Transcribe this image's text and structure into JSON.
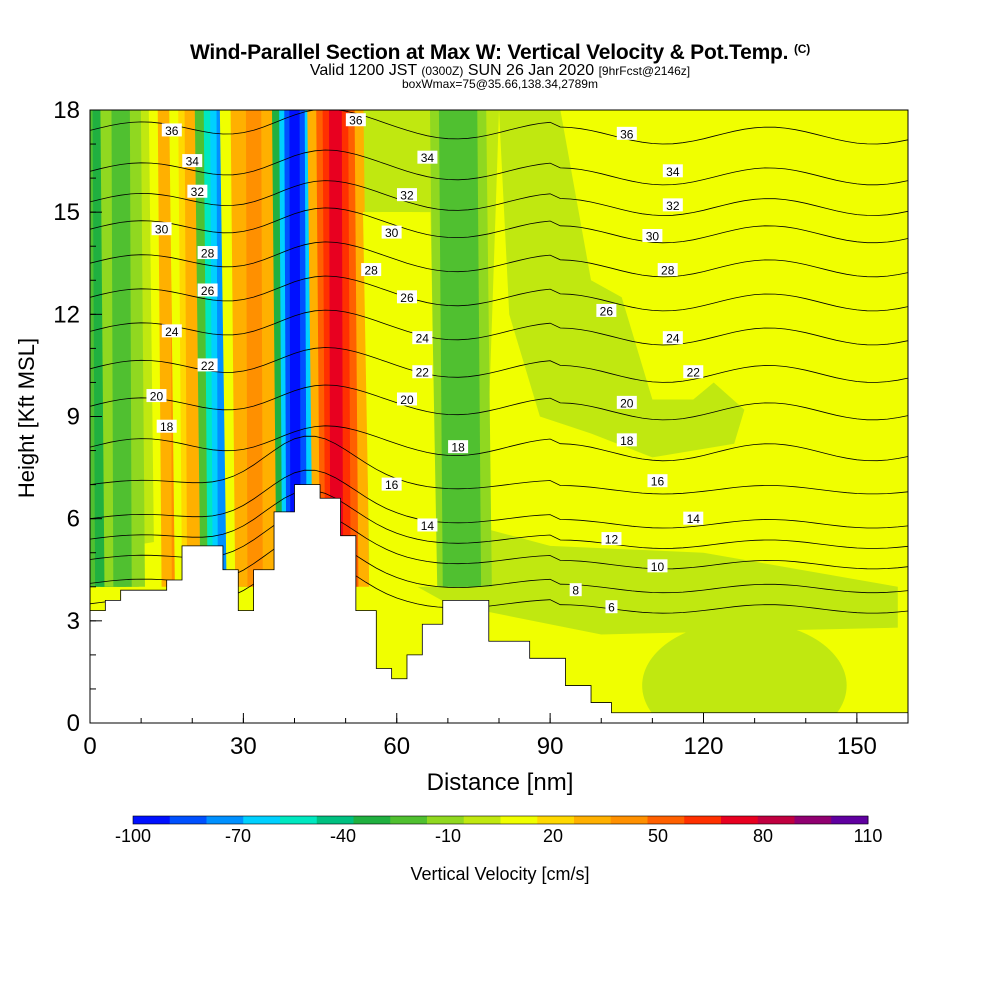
{
  "chart_data": {
    "type": "heatmap",
    "title": "Wind-Parallel Section at Max W: Vertical Velocity & Pot.Temp.",
    "title_mark": "(C)",
    "subtitle_main": "Valid 1200 JST",
    "subtitle_utc": "(0300Z)",
    "subtitle_date": "SUN 26 Jan 2020",
    "subtitle_fcst": "[9hrFcst@2146z]",
    "boxline": "boxWmax=75@35.66,138.34,2789m",
    "xlabel": "Distance [nm]",
    "ylabel": "Height [Kft MSL]",
    "xlim": [
      0,
      160
    ],
    "ylim": [
      0,
      18
    ],
    "x_ticks": [
      "0",
      "30",
      "60",
      "90",
      "120",
      "150"
    ],
    "y_ticks": [
      "0",
      "3",
      "6",
      "9",
      "12",
      "15",
      "18"
    ],
    "colorbar": {
      "label": "Vertical Velocity [cm/s]",
      "tick_labels": [
        "-100",
        "-70",
        "-40",
        "-10",
        "20",
        "50",
        "80",
        "110"
      ],
      "colors": [
        "#0010ff",
        "#0050ff",
        "#0090ff",
        "#00d0ff",
        "#00e8c0",
        "#00c080",
        "#20b040",
        "#50c030",
        "#90d820",
        "#c0e810",
        "#f0ff00",
        "#ffd800",
        "#ffb000",
        "#ff9000",
        "#ff6000",
        "#ff3000",
        "#e80020",
        "#c00040",
        "#900070",
        "#6000a0"
      ]
    },
    "terrain_kft": [
      [
        0,
        3.3
      ],
      [
        3,
        3.6
      ],
      [
        6,
        3.9
      ],
      [
        15,
        4.2
      ],
      [
        18,
        5.2
      ],
      [
        26,
        4.5
      ],
      [
        29,
        3.3
      ],
      [
        32,
        4.5
      ],
      [
        36,
        6.2
      ],
      [
        40,
        7.0
      ],
      [
        45,
        6.6
      ],
      [
        49,
        5.5
      ],
      [
        52,
        3.3
      ],
      [
        56,
        1.6
      ],
      [
        59,
        1.3
      ],
      [
        62,
        2.0
      ],
      [
        65,
        2.9
      ],
      [
        69,
        3.6
      ],
      [
        72,
        3.6
      ],
      [
        78,
        2.4
      ],
      [
        86,
        1.9
      ],
      [
        93,
        1.1
      ],
      [
        98,
        0.6
      ],
      [
        102,
        0.3
      ],
      [
        158,
        0.3
      ]
    ],
    "w_bands": [
      {
        "x": 3,
        "w": 2.5,
        "top": 18,
        "value": -30
      },
      {
        "x": 17,
        "w": 2.5,
        "top": 18,
        "value": 40
      },
      {
        "x": 21,
        "w": 2.5,
        "top": 18,
        "value": 30
      },
      {
        "x": 26,
        "w": 2.5,
        "top": 18,
        "value": -75
      },
      {
        "x": 32,
        "w": 3,
        "top": 18,
        "value": 40
      },
      {
        "x": 40,
        "w": 2,
        "top": 18,
        "value": -95
      },
      {
        "x": 48,
        "w": 2.5,
        "top": 18,
        "value": 75
      },
      {
        "x": 72,
        "w": 2.5,
        "top": 18,
        "value": -25
      },
      {
        "x": 6,
        "w": 1.8,
        "top": 18,
        "value": -20
      },
      {
        "x": 60,
        "w": 3,
        "top": 15,
        "value": 15
      }
    ],
    "theta_contours": [
      {
        "label": "6",
        "h": 3.5
      },
      {
        "label": "8",
        "h": 4.1
      },
      {
        "label": "10",
        "h": 4.8
      },
      {
        "label": "12",
        "h": 5.4
      },
      {
        "label": "14",
        "h": 6.0
      },
      {
        "label": "16",
        "h": 7.0
      },
      {
        "label": "18",
        "h": 8.1
      },
      {
        "label": "20",
        "h": 9.3
      },
      {
        "label": "22",
        "h": 10.4
      },
      {
        "label": "24",
        "h": 11.5
      },
      {
        "label": "26",
        "h": 12.5
      },
      {
        "label": "28",
        "h": 13.5
      },
      {
        "label": "30",
        "h": 14.5
      },
      {
        "label": "32",
        "h": 15.3
      },
      {
        "label": "34",
        "h": 16.2
      },
      {
        "label": "36",
        "h": 17.4
      }
    ],
    "contour_labels": [
      {
        "text": "36",
        "x": 16,
        "y": 17.4
      },
      {
        "text": "36",
        "x": 52,
        "y": 17.7
      },
      {
        "text": "36",
        "x": 105,
        "y": 17.3
      },
      {
        "text": "34",
        "x": 20,
        "y": 16.5
      },
      {
        "text": "34",
        "x": 66,
        "y": 16.6
      },
      {
        "text": "34",
        "x": 114,
        "y": 16.2
      },
      {
        "text": "32",
        "x": 21,
        "y": 15.6
      },
      {
        "text": "32",
        "x": 62,
        "y": 15.5
      },
      {
        "text": "32",
        "x": 114,
        "y": 15.2
      },
      {
        "text": "30",
        "x": 14,
        "y": 14.5
      },
      {
        "text": "30",
        "x": 59,
        "y": 14.4
      },
      {
        "text": "30",
        "x": 110,
        "y": 14.3
      },
      {
        "text": "28",
        "x": 23,
        "y": 13.8
      },
      {
        "text": "28",
        "x": 55,
        "y": 13.3
      },
      {
        "text": "28",
        "x": 113,
        "y": 13.3
      },
      {
        "text": "26",
        "x": 23,
        "y": 12.7
      },
      {
        "text": "26",
        "x": 62,
        "y": 12.5
      },
      {
        "text": "26",
        "x": 101,
        "y": 12.1
      },
      {
        "text": "24",
        "x": 16,
        "y": 11.5
      },
      {
        "text": "24",
        "x": 65,
        "y": 11.3
      },
      {
        "text": "24",
        "x": 114,
        "y": 11.3
      },
      {
        "text": "22",
        "x": 23,
        "y": 10.5
      },
      {
        "text": "22",
        "x": 65,
        "y": 10.3
      },
      {
        "text": "22",
        "x": 118,
        "y": 10.3
      },
      {
        "text": "20",
        "x": 13,
        "y": 9.6
      },
      {
        "text": "20",
        "x": 62,
        "y": 9.5
      },
      {
        "text": "20",
        "x": 105,
        "y": 9.4
      },
      {
        "text": "18",
        "x": 15,
        "y": 8.7
      },
      {
        "text": "18",
        "x": 72,
        "y": 8.1
      },
      {
        "text": "18",
        "x": 105,
        "y": 8.3
      },
      {
        "text": "16",
        "x": 59,
        "y": 7.0
      },
      {
        "text": "16",
        "x": 111,
        "y": 7.1
      },
      {
        "text": "14",
        "x": 66,
        "y": 5.8
      },
      {
        "text": "14",
        "x": 118,
        "y": 6.0
      },
      {
        "text": "12",
        "x": 102,
        "y": 5.4
      },
      {
        "text": "10",
        "x": 111,
        "y": 4.6
      },
      {
        "text": "8",
        "x": 95,
        "y": 3.9
      },
      {
        "text": "6",
        "x": 102,
        "y": 3.4
      }
    ]
  }
}
